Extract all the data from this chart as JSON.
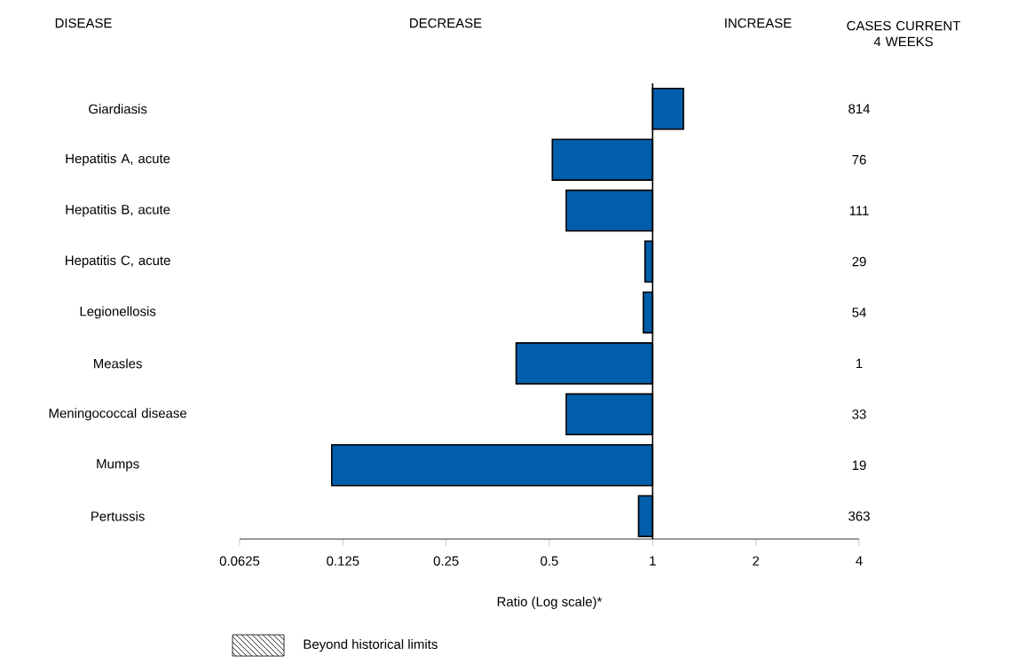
{
  "chart_data": {
    "type": "bar",
    "orientation": "horizontal",
    "log": "x",
    "xlabel": "Ratio (Log scale)*",
    "categories": [
      "Giardiasis",
      "Hepatitis A, acute",
      "Hepatitis B, acute",
      "Hepatitis C, acute",
      "Legionellosis",
      "Measles",
      "Meningococcal disease",
      "Mumps",
      "Pertussis"
    ],
    "base": [
      1,
      1,
      1,
      1,
      1,
      1,
      1,
      1,
      1
    ],
    "values": [
      0.23,
      -0.49,
      -0.44,
      -0.05,
      -0.06,
      -0.6,
      -0.44,
      -0.884,
      -0.09
    ],
    "color": "#005eaa",
    "xlim": [
      0.0625,
      4
    ],
    "xticks": [
      0.0625,
      0.125,
      0.25,
      0.5,
      1,
      2,
      4
    ],
    "ref_lines": [
      {
        "axis": "x",
        "value": 1,
        "color": "#000000"
      }
    ],
    "annotations": [
      "DISEASE",
      "DECREASE",
      "INCREASE",
      "CASES CURRENT 4 WEEKS",
      "Beyond historical limits",
      "814",
      "76",
      "111",
      "29",
      "54",
      "1",
      "33",
      "19",
      "363"
    ]
  }
}
